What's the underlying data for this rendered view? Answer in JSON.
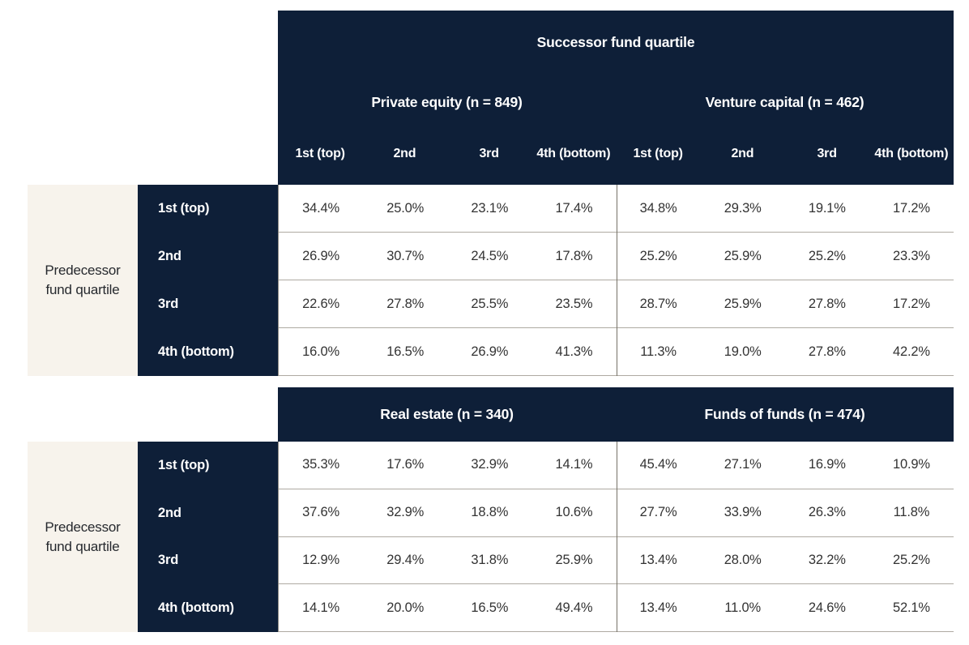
{
  "colors": {
    "navy": "#0e1f38",
    "cream": "#f7f3ec",
    "row_border": "#aeaaa2",
    "group_divider": "#767268",
    "data_text": "#333333",
    "header_text": "#ffffff"
  },
  "matrix": {
    "successor_axis_label": "Successor fund quartile",
    "predecessor_axis_label": "Predecessor fund quartile",
    "column_headers": [
      "1st (top)",
      "2nd",
      "3rd",
      "4th (bottom)"
    ],
    "row_headers": [
      "1st (top)",
      "2nd",
      "3rd",
      "4th (bottom)"
    ],
    "top_panels": [
      {
        "label": "Private equity (n = 849)",
        "rows": [
          [
            "34.4%",
            "25.0%",
            "23.1%",
            "17.4%"
          ],
          [
            "26.9%",
            "30.7%",
            "24.5%",
            "17.8%"
          ],
          [
            "22.6%",
            "27.8%",
            "25.5%",
            "23.5%"
          ],
          [
            "16.0%",
            "16.5%",
            "26.9%",
            "41.3%"
          ]
        ]
      },
      {
        "label": "Venture capital (n = 462)",
        "rows": [
          [
            "34.8%",
            "29.3%",
            "19.1%",
            "17.2%"
          ],
          [
            "25.2%",
            "25.9%",
            "25.2%",
            "23.3%"
          ],
          [
            "28.7%",
            "25.9%",
            "27.8%",
            "17.2%"
          ],
          [
            "11.3%",
            "19.0%",
            "27.8%",
            "42.2%"
          ]
        ]
      }
    ],
    "bottom_panels": [
      {
        "label": "Real estate (n = 340)",
        "rows": [
          [
            "35.3%",
            "17.6%",
            "32.9%",
            "14.1%"
          ],
          [
            "37.6%",
            "32.9%",
            "18.8%",
            "10.6%"
          ],
          [
            "12.9%",
            "29.4%",
            "31.8%",
            "25.9%"
          ],
          [
            "14.1%",
            "20.0%",
            "16.5%",
            "49.4%"
          ]
        ]
      },
      {
        "label": "Funds of funds (n = 474)",
        "rows": [
          [
            "13.4%",
            "11.0%",
            "24.6%",
            "52.1%"
          ]
        ],
        "rows_full": [
          [
            "45.4%",
            "27.1%",
            "16.9%",
            "10.9%"
          ],
          [
            "27.7%",
            "33.9%",
            "26.3%",
            "11.8%"
          ],
          [
            "13.4%",
            "28.0%",
            "32.2%",
            "25.2%"
          ],
          [
            "13.4%",
            "11.0%",
            "24.6%",
            "52.1%"
          ]
        ]
      }
    ]
  },
  "chart_data": {
    "type": "table",
    "title": "Successor fund quartile",
    "row_axis_label": "Predecessor fund quartile",
    "row_categories": [
      "1st (top)",
      "2nd",
      "3rd",
      "4th (bottom)"
    ],
    "column_categories": [
      "1st (top)",
      "2nd",
      "3rd",
      "4th (bottom)"
    ],
    "units": "percent",
    "panels": [
      {
        "name": "Private equity (n = 849)",
        "n": 849,
        "values_pct": [
          [
            34.4,
            25.0,
            23.1,
            17.4
          ],
          [
            26.9,
            30.7,
            24.5,
            17.8
          ],
          [
            22.6,
            27.8,
            25.5,
            23.5
          ],
          [
            16.0,
            16.5,
            26.9,
            41.3
          ]
        ]
      },
      {
        "name": "Venture capital (n = 462)",
        "n": 462,
        "values_pct": [
          [
            34.8,
            29.3,
            19.1,
            17.2
          ],
          [
            25.2,
            25.9,
            25.2,
            23.3
          ],
          [
            28.7,
            25.9,
            27.8,
            17.2
          ],
          [
            11.3,
            19.0,
            27.8,
            42.2
          ]
        ]
      },
      {
        "name": "Real estate (n = 340)",
        "n": 340,
        "values_pct": [
          [
            35.3,
            17.6,
            32.9,
            14.1
          ],
          [
            37.6,
            32.9,
            18.8,
            10.6
          ],
          [
            12.9,
            29.4,
            31.8,
            25.9
          ],
          [
            14.1,
            20.0,
            16.5,
            49.4
          ]
        ]
      },
      {
        "name": "Funds of funds (n = 474)",
        "n": 474,
        "values_pct": [
          [
            45.4,
            27.1,
            16.9,
            10.9
          ],
          [
            27.7,
            33.9,
            26.3,
            11.8
          ],
          [
            13.4,
            28.0,
            32.2,
            25.2
          ],
          [
            13.4,
            11.0,
            24.6,
            52.1
          ]
        ]
      }
    ]
  }
}
